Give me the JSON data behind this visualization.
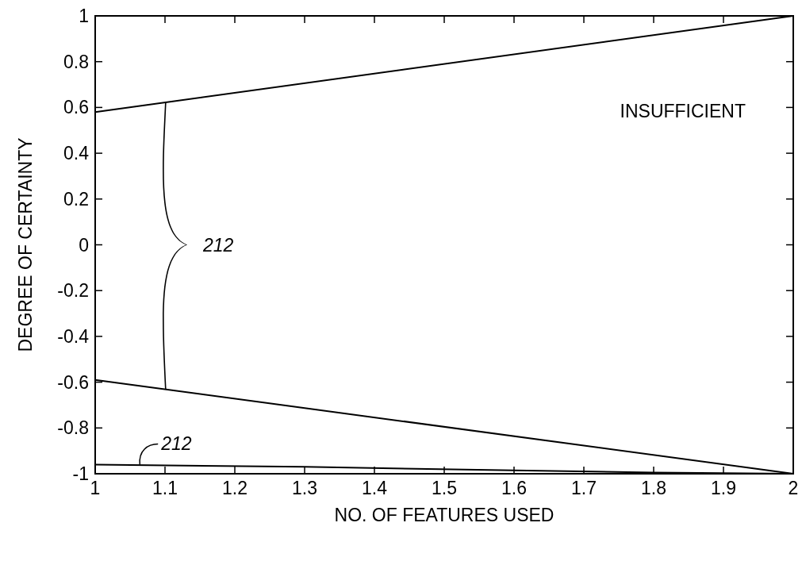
{
  "chart_data": {
    "type": "line",
    "xlabel": "NO. OF FEATURES USED",
    "ylabel": "DEGREE OF CERTAINTY",
    "x": [
      1,
      2
    ],
    "series": [
      {
        "color": "#000000",
        "values": [
          0.58,
          1
        ]
      },
      {
        "color": "#000000",
        "values": [
          -0.59,
          -1
        ]
      },
      {
        "color": "#000000",
        "x": [
          1,
          1.3,
          1.6,
          1.8,
          2
        ],
        "values": [
          -0.96,
          -0.97,
          -0.985,
          -0.995,
          -1
        ]
      }
    ],
    "xlim": [
      1,
      2
    ],
    "xticks": [
      1,
      1.1,
      1.2,
      1.3,
      1.4,
      1.5,
      1.6,
      1.7,
      1.8,
      1.9,
      2
    ],
    "ylim": [
      -1,
      1
    ],
    "yticks": [
      -1,
      -0.8,
      -0.6,
      -0.4,
      -0.2,
      0,
      0.2,
      0.4,
      0.6,
      0.8,
      1
    ],
    "grid": false,
    "marker": "none",
    "line_style": "solid",
    "annotations": [
      "INSUFFICIENT",
      "212",
      "212"
    ]
  }
}
